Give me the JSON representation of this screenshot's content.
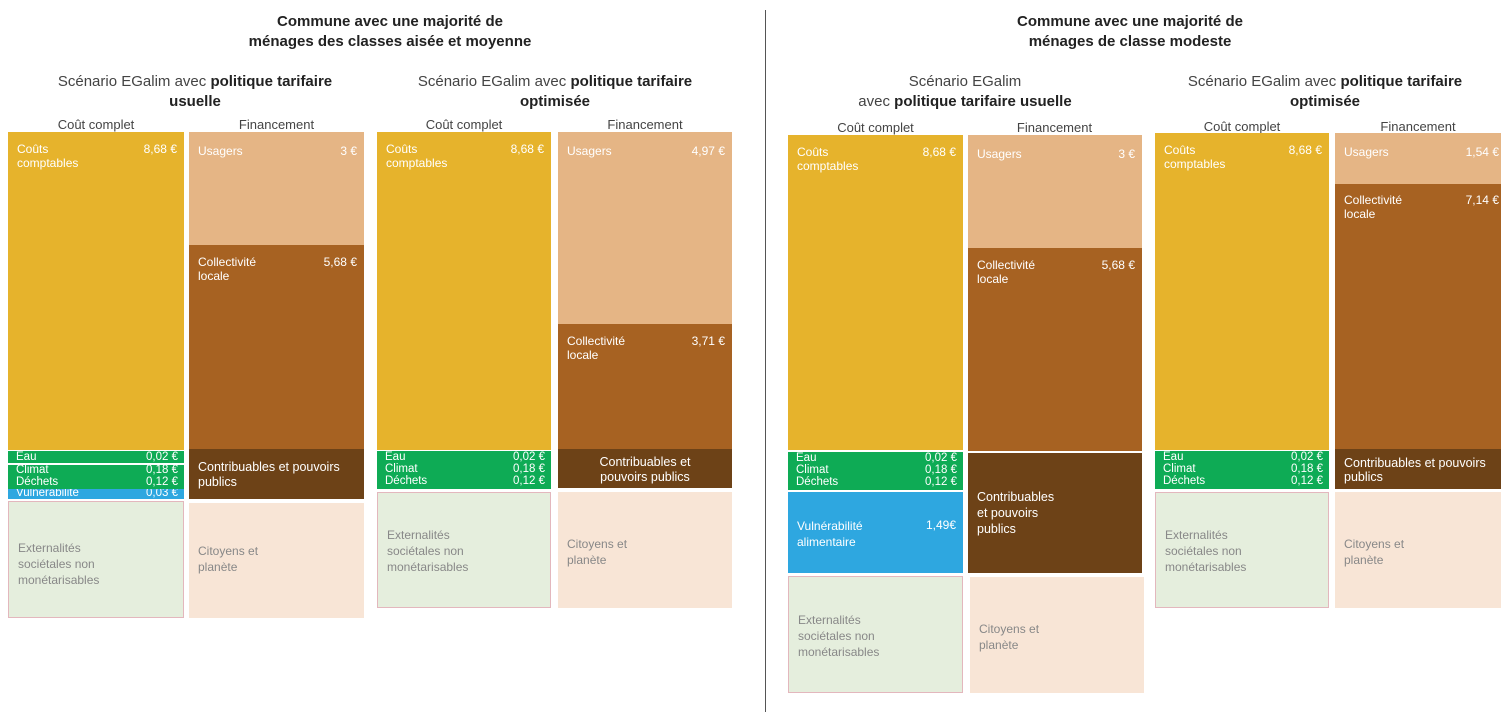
{
  "left_section": {
    "title_line1": "Commune avec une majorité de",
    "title_line2": "ménages des classes aisée et moyenne",
    "scenario_usual": {
      "prefix": "Scénario EGalim avec ",
      "bold": "politique tarifaire",
      "line2": "usuelle"
    },
    "scenario_opt": {
      "prefix": "Scénario EGalim avec ",
      "bold": "politique tarifaire",
      "line2": "optimisée"
    }
  },
  "right_section": {
    "title_line1": "Commune avec une majorité de",
    "title_line2": "ménages de classe modeste",
    "scenario_usual": {
      "line1": "Scénario EGalim",
      "prefix2": "avec ",
      "bold2": "politique tarifaire usuelle"
    },
    "scenario_opt": {
      "prefix": "Scénario EGalim avec ",
      "bold": "politique tarifaire",
      "line2": "optimisée"
    }
  },
  "headers": {
    "cout": "Coût complet",
    "fin": "Financement"
  },
  "labels": {
    "couts_line1": "Coûts",
    "couts_line2": "comptables",
    "usagers": "Usagers",
    "collectivite_line1": "Collectivité",
    "collectivite_line2": "locale",
    "contrib_one": "Contribuables et pouvoirs",
    "contrib_two": "publics",
    "contrib_b1": "Contribuables et",
    "contrib_b2": "pouvoirs publics",
    "contrib_c1": "Contribuables",
    "contrib_c2": "et pouvoirs",
    "contrib_c3": "publics",
    "eau": "Eau",
    "climat": "Climat",
    "dechets": "Déchets",
    "vulnerabilite": "Vulnérabilité",
    "vuln_alim": "alimentaire",
    "ext_1": "Externalités",
    "ext_2": "sociétales non",
    "ext_3": "monétarisables",
    "cit_1": "Citoyens et",
    "cit_2": "planète"
  },
  "values": {
    "couts": "8,68 €",
    "eau": "0,02 €",
    "climat": "0,18 €",
    "dechets": "0,12 €",
    "vuln_small": "0,03 €",
    "vuln_large": "1,49€",
    "p1_usagers": "3 €",
    "p1_collectivite": "5,68 €",
    "p2_usagers": "4,97 €",
    "p2_collectivite": "3,71 €",
    "p3_usagers": "3 €",
    "p3_collectivite": "5,68 €",
    "p4_usagers": "1,54 €",
    "p4_collectivite": "7,14 €"
  },
  "colors": {
    "couts": "#e6b32c",
    "usagers": "#e5b585",
    "collectivite": "#a76222",
    "contribuables": "#6d4217",
    "environment": "#0eab55",
    "vulnerabilite": "#2ea7e0",
    "externalites": "#e5eedd",
    "citoyens": "#f8e5d6"
  }
}
